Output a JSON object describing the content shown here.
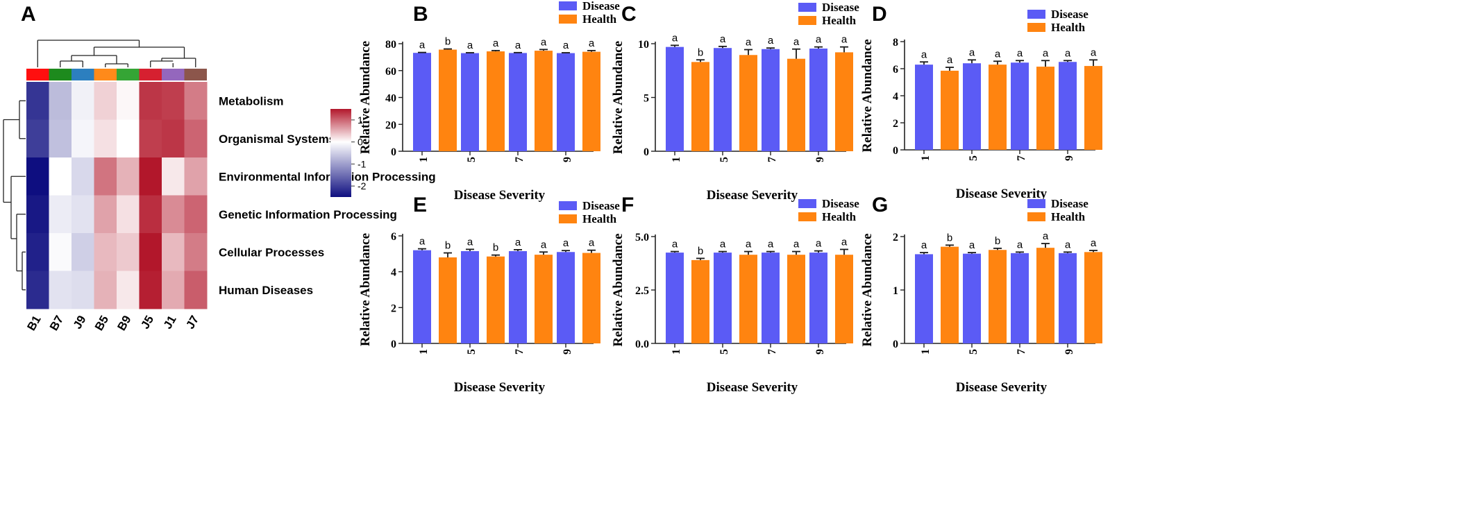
{
  "colors": {
    "disease": "#5b5bf5",
    "health": "#ff8410",
    "error": "#1a1a1a",
    "heat_low": "#0e0e80",
    "heat_mid": "#ffffff",
    "heat_high": "#b2172b"
  },
  "chart_data": [
    {
      "panel": "A",
      "type": "heatmap",
      "columns": [
        "B1",
        "B7",
        "J9",
        "B5",
        "B9",
        "J5",
        "J1",
        "J7"
      ],
      "column_group_colors": [
        "#ff0f0f",
        "#1d8a1d",
        "#2c7fbf",
        "#ff8a1a",
        "#35a535",
        "#d62030",
        "#9467bd",
        "#8c564b"
      ],
      "rows": [
        "Metabolism",
        "Organismal Systems",
        "Environmental Information Processing",
        "Genetic Information Processing",
        "Cellular Processes",
        "Human Diseases"
      ],
      "values": [
        [
          -2.1,
          -0.7,
          -0.15,
          0.3,
          0.05,
          1.3,
          1.25,
          0.85
        ],
        [
          -2.0,
          -0.65,
          -0.1,
          0.2,
          0.0,
          1.25,
          1.3,
          1.0
        ],
        [
          -2.5,
          0.0,
          -0.4,
          0.9,
          0.5,
          1.55,
          0.15,
          0.6
        ],
        [
          -2.4,
          -0.2,
          -0.3,
          0.6,
          0.2,
          1.35,
          0.75,
          1.0
        ],
        [
          -2.3,
          -0.05,
          -0.5,
          0.45,
          0.35,
          1.5,
          0.45,
          0.85
        ],
        [
          -2.2,
          -0.3,
          -0.35,
          0.5,
          0.15,
          1.45,
          0.55,
          1.05
        ]
      ],
      "colorbar": {
        "ticks": [
          "1",
          "0",
          "-1",
          "-2"
        ],
        "range": [
          -2.5,
          1.5
        ]
      }
    },
    {
      "panel": "B",
      "type": "bar",
      "xlabel": "Disease Severity",
      "ylabel": "Relative Abundance",
      "categories": [
        "1",
        "5",
        "7",
        "9"
      ],
      "ylim": [
        0,
        80
      ],
      "yticks": [
        "0",
        "20",
        "40",
        "60",
        "80"
      ],
      "legend": [
        "Disease",
        "Health"
      ],
      "series": [
        {
          "name": "Disease",
          "values": [
            73.2,
            73.0,
            73.1,
            73.0
          ],
          "errors": [
            0.3,
            0.3,
            0.3,
            0.3
          ],
          "labels": [
            "a",
            "a",
            "a",
            "a"
          ]
        },
        {
          "name": "Health",
          "values": [
            75.6,
            74.3,
            74.8,
            74.0
          ],
          "errors": [
            0.5,
            0.6,
            0.9,
            0.9
          ],
          "labels": [
            "b",
            "a",
            "a",
            "a"
          ]
        }
      ]
    },
    {
      "panel": "C",
      "type": "bar",
      "xlabel": "Disease Severity",
      "ylabel": "Relative Abundance",
      "categories": [
        "1",
        "5",
        "7",
        "9"
      ],
      "ylim": [
        0,
        10
      ],
      "yticks": [
        "0",
        "5",
        "10"
      ],
      "legend": [
        "Disease",
        "Health"
      ],
      "series": [
        {
          "name": "Disease",
          "values": [
            9.7,
            9.6,
            9.5,
            9.55
          ],
          "errors": [
            0.15,
            0.15,
            0.1,
            0.15
          ],
          "labels": [
            "a",
            "a",
            "a",
            "a"
          ]
        },
        {
          "name": "Health",
          "values": [
            8.3,
            8.95,
            8.6,
            9.2
          ],
          "errors": [
            0.2,
            0.5,
            0.9,
            0.5
          ],
          "labels": [
            "b",
            "a",
            "a",
            "a"
          ]
        }
      ]
    },
    {
      "panel": "D",
      "type": "bar",
      "xlabel": "Disease Severity",
      "ylabel": "Relative Abundance",
      "categories": [
        "1",
        "5",
        "7",
        "9"
      ],
      "ylim": [
        0,
        8
      ],
      "yticks": [
        "0",
        "2",
        "4",
        "6",
        "8"
      ],
      "legend": [
        "Disease",
        "Health"
      ],
      "series": [
        {
          "name": "Disease",
          "values": [
            6.3,
            6.4,
            6.45,
            6.5
          ],
          "errors": [
            0.2,
            0.25,
            0.15,
            0.1
          ],
          "labels": [
            "a",
            "a",
            "a",
            "a"
          ]
        },
        {
          "name": "Health",
          "values": [
            5.85,
            6.3,
            6.15,
            6.2
          ],
          "errors": [
            0.25,
            0.25,
            0.45,
            0.45
          ],
          "labels": [
            "a",
            "a",
            "a",
            "a"
          ]
        }
      ]
    },
    {
      "panel": "E",
      "type": "bar",
      "xlabel": "Disease Severity",
      "ylabel": "Relative Abundance",
      "categories": [
        "1",
        "5",
        "7",
        "9"
      ],
      "ylim": [
        0,
        6
      ],
      "yticks": [
        "0",
        "2",
        "4",
        "6"
      ],
      "legend": [
        "Disease",
        "Health"
      ],
      "series": [
        {
          "name": "Disease",
          "values": [
            5.2,
            5.15,
            5.15,
            5.1
          ],
          "errors": [
            0.08,
            0.1,
            0.08,
            0.08
          ],
          "labels": [
            "a",
            "a",
            "a",
            "a"
          ]
        },
        {
          "name": "Health",
          "values": [
            4.8,
            4.85,
            4.95,
            5.05
          ],
          "errors": [
            0.25,
            0.08,
            0.15,
            0.15
          ],
          "labels": [
            "b",
            "b",
            "a",
            "a"
          ]
        }
      ]
    },
    {
      "panel": "F",
      "type": "bar",
      "xlabel": "Disease Severity",
      "ylabel": "Relative Abundance",
      "categories": [
        "1",
        "5",
        "7",
        "9"
      ],
      "ylim": [
        0,
        5
      ],
      "yticks": [
        "0.0",
        "2.5",
        "5.0"
      ],
      "legend": [
        "Disease",
        "Health"
      ],
      "series": [
        {
          "name": "Disease",
          "values": [
            4.25,
            4.25,
            4.25,
            4.25
          ],
          "errors": [
            0.05,
            0.05,
            0.05,
            0.08
          ],
          "labels": [
            "a",
            "a",
            "a",
            "a"
          ]
        },
        {
          "name": "Health",
          "values": [
            3.9,
            4.15,
            4.15,
            4.15
          ],
          "errors": [
            0.08,
            0.15,
            0.15,
            0.25
          ],
          "labels": [
            "b",
            "a",
            "a",
            "a"
          ]
        }
      ]
    },
    {
      "panel": "G",
      "type": "bar",
      "xlabel": "Disease Severity",
      "ylabel": "Relative Abundance",
      "categories": [
        "1",
        "5",
        "7",
        "9"
      ],
      "ylim": [
        0,
        2
      ],
      "yticks": [
        "0",
        "1",
        "2"
      ],
      "legend": [
        "Disease",
        "Health"
      ],
      "series": [
        {
          "name": "Disease",
          "values": [
            1.67,
            1.68,
            1.69,
            1.69
          ],
          "errors": [
            0.03,
            0.02,
            0.02,
            0.02
          ],
          "labels": [
            "a",
            "a",
            "a",
            "a"
          ]
        },
        {
          "name": "Health",
          "values": [
            1.81,
            1.75,
            1.79,
            1.71
          ],
          "errors": [
            0.03,
            0.03,
            0.08,
            0.03
          ],
          "labels": [
            "b",
            "b",
            "a",
            "a"
          ]
        }
      ]
    }
  ]
}
